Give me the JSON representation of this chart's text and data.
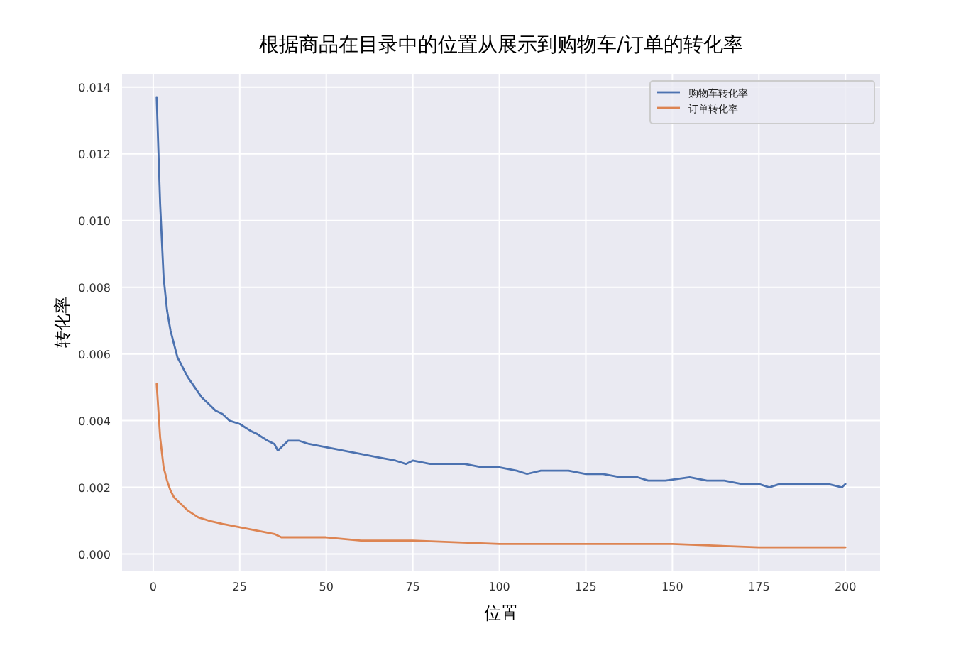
{
  "chart_data": {
    "type": "line",
    "title": "根据商品在目录中的位置从展示到购物车/订单的转化率",
    "xlabel": "位置",
    "ylabel": "转化率",
    "xlim": [
      -9,
      210
    ],
    "xticks": [
      0,
      25,
      50,
      75,
      100,
      125,
      150,
      175,
      200
    ],
    "ylim": [
      -0.0005,
      0.0144
    ],
    "yticks": [
      {
        "value": 0,
        "label": "0.000"
      },
      {
        "value": 0.002,
        "label": "0.002"
      },
      {
        "value": 0.004,
        "label": "0.004"
      },
      {
        "value": 0.006,
        "label": "0.006"
      },
      {
        "value": 0.008,
        "label": "0.008"
      },
      {
        "value": 0.01,
        "label": "0.010"
      },
      {
        "value": 0.012,
        "label": "0.012"
      },
      {
        "value": 0.014,
        "label": "0.014"
      }
    ],
    "grid": true,
    "legend": "top right",
    "series": [
      {
        "name": "购物车转化率",
        "color": "#4c72b0",
        "x": [
          1,
          2,
          3,
          4,
          5,
          6,
          7,
          8,
          9,
          10,
          12,
          14,
          16,
          18,
          20,
          22,
          25,
          28,
          30,
          33,
          35,
          36,
          37,
          39,
          42,
          45,
          50,
          55,
          60,
          65,
          70,
          73,
          75,
          80,
          85,
          90,
          95,
          100,
          105,
          108,
          112,
          120,
          125,
          130,
          135,
          140,
          143,
          148,
          155,
          160,
          165,
          170,
          175,
          178,
          181,
          185,
          190,
          195,
          199,
          200
        ],
        "values": [
          0.0137,
          0.0105,
          0.0083,
          0.0073,
          0.0067,
          0.0063,
          0.0059,
          0.0057,
          0.0055,
          0.0053,
          0.005,
          0.0047,
          0.0045,
          0.0043,
          0.0042,
          0.004,
          0.0039,
          0.0037,
          0.0036,
          0.0034,
          0.0033,
          0.0031,
          0.0032,
          0.0034,
          0.0034,
          0.0033,
          0.0032,
          0.0031,
          0.003,
          0.0029,
          0.0028,
          0.0027,
          0.0028,
          0.0027,
          0.0027,
          0.0027,
          0.0026,
          0.0026,
          0.0025,
          0.0024,
          0.0025,
          0.0025,
          0.0024,
          0.0024,
          0.0023,
          0.0023,
          0.0022,
          0.0022,
          0.0023,
          0.0022,
          0.0022,
          0.0021,
          0.0021,
          0.002,
          0.0021,
          0.0021,
          0.0021,
          0.0021,
          0.002,
          0.0021
        ]
      },
      {
        "name": "订单转化率",
        "color": "#dd8452",
        "x": [
          1,
          2,
          3,
          4,
          5,
          6,
          8,
          10,
          13,
          16,
          20,
          25,
          30,
          35,
          37,
          40,
          50,
          60,
          75,
          100,
          125,
          150,
          175,
          200
        ],
        "values": [
          0.0051,
          0.0035,
          0.0026,
          0.0022,
          0.0019,
          0.0017,
          0.0015,
          0.0013,
          0.0011,
          0.001,
          0.0009,
          0.0008,
          0.0007,
          0.0006,
          0.0005,
          0.0005,
          0.0005,
          0.0004,
          0.0004,
          0.0003,
          0.0003,
          0.0003,
          0.0002,
          0.0002
        ]
      }
    ]
  }
}
